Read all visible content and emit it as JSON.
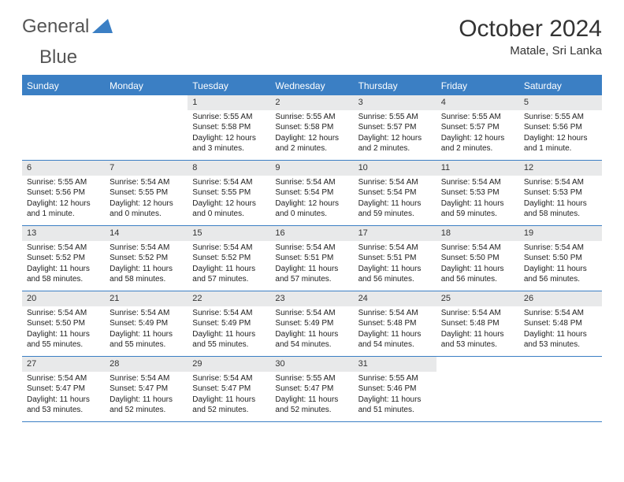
{
  "logo": {
    "word1": "General",
    "word2": "Blue",
    "triangle_color": "#3b7fc4"
  },
  "title": "October 2024",
  "location": "Matale, Sri Lanka",
  "theme": {
    "accent": "#3b7fc4",
    "header_text": "#ffffff",
    "daynum_bg": "#e8e9ea"
  },
  "day_headers": [
    "Sunday",
    "Monday",
    "Tuesday",
    "Wednesday",
    "Thursday",
    "Friday",
    "Saturday"
  ],
  "weeks": [
    [
      {
        "n": "",
        "sr": "",
        "ss": "",
        "dl": ""
      },
      {
        "n": "",
        "sr": "",
        "ss": "",
        "dl": ""
      },
      {
        "n": "1",
        "sr": "Sunrise: 5:55 AM",
        "ss": "Sunset: 5:58 PM",
        "dl": "Daylight: 12 hours and 3 minutes."
      },
      {
        "n": "2",
        "sr": "Sunrise: 5:55 AM",
        "ss": "Sunset: 5:58 PM",
        "dl": "Daylight: 12 hours and 2 minutes."
      },
      {
        "n": "3",
        "sr": "Sunrise: 5:55 AM",
        "ss": "Sunset: 5:57 PM",
        "dl": "Daylight: 12 hours and 2 minutes."
      },
      {
        "n": "4",
        "sr": "Sunrise: 5:55 AM",
        "ss": "Sunset: 5:57 PM",
        "dl": "Daylight: 12 hours and 2 minutes."
      },
      {
        "n": "5",
        "sr": "Sunrise: 5:55 AM",
        "ss": "Sunset: 5:56 PM",
        "dl": "Daylight: 12 hours and 1 minute."
      }
    ],
    [
      {
        "n": "6",
        "sr": "Sunrise: 5:55 AM",
        "ss": "Sunset: 5:56 PM",
        "dl": "Daylight: 12 hours and 1 minute."
      },
      {
        "n": "7",
        "sr": "Sunrise: 5:54 AM",
        "ss": "Sunset: 5:55 PM",
        "dl": "Daylight: 12 hours and 0 minutes."
      },
      {
        "n": "8",
        "sr": "Sunrise: 5:54 AM",
        "ss": "Sunset: 5:55 PM",
        "dl": "Daylight: 12 hours and 0 minutes."
      },
      {
        "n": "9",
        "sr": "Sunrise: 5:54 AM",
        "ss": "Sunset: 5:54 PM",
        "dl": "Daylight: 12 hours and 0 minutes."
      },
      {
        "n": "10",
        "sr": "Sunrise: 5:54 AM",
        "ss": "Sunset: 5:54 PM",
        "dl": "Daylight: 11 hours and 59 minutes."
      },
      {
        "n": "11",
        "sr": "Sunrise: 5:54 AM",
        "ss": "Sunset: 5:53 PM",
        "dl": "Daylight: 11 hours and 59 minutes."
      },
      {
        "n": "12",
        "sr": "Sunrise: 5:54 AM",
        "ss": "Sunset: 5:53 PM",
        "dl": "Daylight: 11 hours and 58 minutes."
      }
    ],
    [
      {
        "n": "13",
        "sr": "Sunrise: 5:54 AM",
        "ss": "Sunset: 5:52 PM",
        "dl": "Daylight: 11 hours and 58 minutes."
      },
      {
        "n": "14",
        "sr": "Sunrise: 5:54 AM",
        "ss": "Sunset: 5:52 PM",
        "dl": "Daylight: 11 hours and 58 minutes."
      },
      {
        "n": "15",
        "sr": "Sunrise: 5:54 AM",
        "ss": "Sunset: 5:52 PM",
        "dl": "Daylight: 11 hours and 57 minutes."
      },
      {
        "n": "16",
        "sr": "Sunrise: 5:54 AM",
        "ss": "Sunset: 5:51 PM",
        "dl": "Daylight: 11 hours and 57 minutes."
      },
      {
        "n": "17",
        "sr": "Sunrise: 5:54 AM",
        "ss": "Sunset: 5:51 PM",
        "dl": "Daylight: 11 hours and 56 minutes."
      },
      {
        "n": "18",
        "sr": "Sunrise: 5:54 AM",
        "ss": "Sunset: 5:50 PM",
        "dl": "Daylight: 11 hours and 56 minutes."
      },
      {
        "n": "19",
        "sr": "Sunrise: 5:54 AM",
        "ss": "Sunset: 5:50 PM",
        "dl": "Daylight: 11 hours and 56 minutes."
      }
    ],
    [
      {
        "n": "20",
        "sr": "Sunrise: 5:54 AM",
        "ss": "Sunset: 5:50 PM",
        "dl": "Daylight: 11 hours and 55 minutes."
      },
      {
        "n": "21",
        "sr": "Sunrise: 5:54 AM",
        "ss": "Sunset: 5:49 PM",
        "dl": "Daylight: 11 hours and 55 minutes."
      },
      {
        "n": "22",
        "sr": "Sunrise: 5:54 AM",
        "ss": "Sunset: 5:49 PM",
        "dl": "Daylight: 11 hours and 55 minutes."
      },
      {
        "n": "23",
        "sr": "Sunrise: 5:54 AM",
        "ss": "Sunset: 5:49 PM",
        "dl": "Daylight: 11 hours and 54 minutes."
      },
      {
        "n": "24",
        "sr": "Sunrise: 5:54 AM",
        "ss": "Sunset: 5:48 PM",
        "dl": "Daylight: 11 hours and 54 minutes."
      },
      {
        "n": "25",
        "sr": "Sunrise: 5:54 AM",
        "ss": "Sunset: 5:48 PM",
        "dl": "Daylight: 11 hours and 53 minutes."
      },
      {
        "n": "26",
        "sr": "Sunrise: 5:54 AM",
        "ss": "Sunset: 5:48 PM",
        "dl": "Daylight: 11 hours and 53 minutes."
      }
    ],
    [
      {
        "n": "27",
        "sr": "Sunrise: 5:54 AM",
        "ss": "Sunset: 5:47 PM",
        "dl": "Daylight: 11 hours and 53 minutes."
      },
      {
        "n": "28",
        "sr": "Sunrise: 5:54 AM",
        "ss": "Sunset: 5:47 PM",
        "dl": "Daylight: 11 hours and 52 minutes."
      },
      {
        "n": "29",
        "sr": "Sunrise: 5:54 AM",
        "ss": "Sunset: 5:47 PM",
        "dl": "Daylight: 11 hours and 52 minutes."
      },
      {
        "n": "30",
        "sr": "Sunrise: 5:55 AM",
        "ss": "Sunset: 5:47 PM",
        "dl": "Daylight: 11 hours and 52 minutes."
      },
      {
        "n": "31",
        "sr": "Sunrise: 5:55 AM",
        "ss": "Sunset: 5:46 PM",
        "dl": "Daylight: 11 hours and 51 minutes."
      },
      {
        "n": "",
        "sr": "",
        "ss": "",
        "dl": ""
      },
      {
        "n": "",
        "sr": "",
        "ss": "",
        "dl": ""
      }
    ]
  ]
}
